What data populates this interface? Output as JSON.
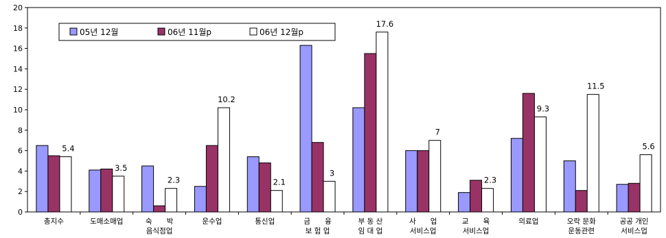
{
  "chart_data": {
    "type": "bar",
    "title": "",
    "xlabel": "",
    "ylabel": "",
    "ylim": [
      0,
      20
    ],
    "yticks": [
      0,
      2,
      4,
      6,
      8,
      10,
      12,
      14,
      16,
      18,
      20
    ],
    "legend_position": "top-left",
    "categories": [
      [
        "총지수"
      ],
      [
        "도매소매업"
      ],
      [
        "숙　　박",
        "음식점업"
      ],
      [
        "운수업"
      ],
      [
        "통신업"
      ],
      [
        "금　　융",
        "보 험 업"
      ],
      [
        "부 동 산",
        "임 대 업"
      ],
      [
        "사　　업",
        "서비스업"
      ],
      [
        "교　　육",
        "서비스업"
      ],
      [
        "의료업"
      ],
      [
        "오락 문화",
        "운동관련"
      ],
      [
        "공공 개인",
        "서비스업"
      ]
    ],
    "series": [
      {
        "name": "05년 12월",
        "color": "#9999ff",
        "values": [
          6.5,
          4.1,
          4.5,
          2.5,
          5.4,
          16.3,
          10.2,
          6.0,
          1.9,
          7.2,
          5.0,
          2.7
        ]
      },
      {
        "name": "06년 11월p",
        "color": "#993366",
        "values": [
          5.5,
          4.2,
          0.6,
          6.5,
          4.8,
          6.8,
          15.5,
          6.0,
          3.1,
          11.6,
          2.1,
          2.8
        ]
      },
      {
        "name": "06년 12월p",
        "color": "#ffffff",
        "values": [
          5.4,
          3.5,
          2.3,
          10.2,
          2.1,
          3.0,
          17.6,
          7.0,
          2.3,
          9.3,
          11.5,
          5.6
        ]
      }
    ],
    "data_labels": [
      "5.4",
      "3.5",
      "2.3",
      "10.2",
      "2.1",
      "3",
      "17.6",
      "7",
      "2.3",
      "9.3",
      "11.5",
      "5.6"
    ]
  }
}
